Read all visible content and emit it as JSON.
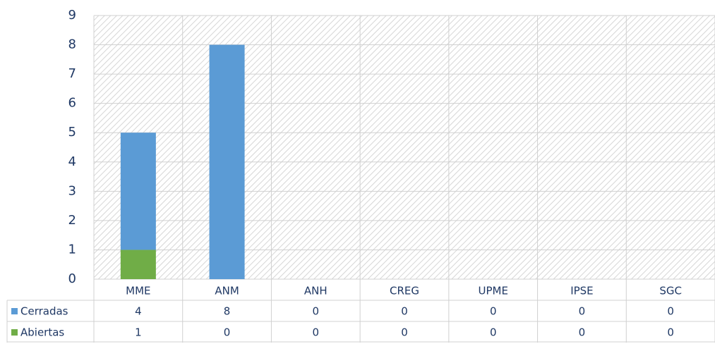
{
  "chart_data": {
    "type": "stacked_bar",
    "categories": [
      "MME",
      "ANM",
      "ANH",
      "CREG",
      "UPME",
      "IPSE",
      "SGC"
    ],
    "series": [
      {
        "name": "Cerradas",
        "color": "#5b9bd5",
        "values": [
          4,
          8,
          0,
          0,
          0,
          0,
          0
        ]
      },
      {
        "name": "Abiertas",
        "color": "#70ad47",
        "values": [
          1,
          0,
          0,
          0,
          0,
          0,
          0
        ]
      }
    ],
    "ylim": [
      0,
      9
    ],
    "yticks": [
      0,
      1,
      2,
      3,
      4,
      5,
      6,
      7,
      8,
      9
    ],
    "grid": true
  }
}
